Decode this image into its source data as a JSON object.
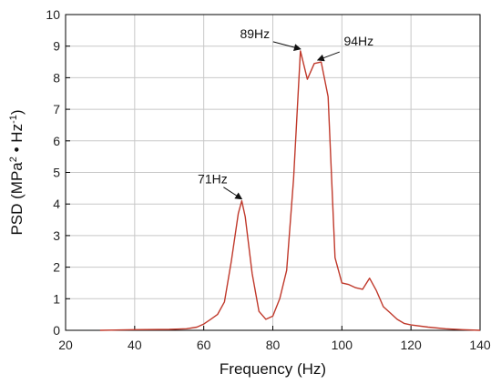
{
  "chart_data": {
    "type": "line",
    "xlabel": "Frequency (Hz)",
    "ylabel": {
      "base": "PSD (MPa",
      "sup1": "2",
      "mid": " • Hz",
      "sup2": "-1",
      "end": ")"
    },
    "xlim": [
      20,
      140
    ],
    "ylim": [
      0,
      10
    ],
    "x_ticks": [
      20,
      40,
      60,
      80,
      100,
      120,
      140
    ],
    "y_ticks": [
      0,
      1,
      2,
      3,
      4,
      5,
      6,
      7,
      8,
      9,
      10
    ],
    "grid": true,
    "series": [
      {
        "color": "#c0392b",
        "points": [
          [
            30,
            0.0
          ],
          [
            40,
            0.02
          ],
          [
            50,
            0.03
          ],
          [
            55,
            0.05
          ],
          [
            58,
            0.1
          ],
          [
            60,
            0.2
          ],
          [
            62,
            0.35
          ],
          [
            64,
            0.5
          ],
          [
            66,
            0.9
          ],
          [
            68,
            2.2
          ],
          [
            70,
            3.7
          ],
          [
            71,
            4.1
          ],
          [
            72,
            3.6
          ],
          [
            74,
            1.8
          ],
          [
            76,
            0.6
          ],
          [
            78,
            0.35
          ],
          [
            80,
            0.45
          ],
          [
            82,
            1.0
          ],
          [
            84,
            1.9
          ],
          [
            86,
            4.8
          ],
          [
            88,
            8.85
          ],
          [
            90,
            7.95
          ],
          [
            92,
            8.45
          ],
          [
            94,
            8.5
          ],
          [
            96,
            7.4
          ],
          [
            98,
            2.3
          ],
          [
            100,
            1.5
          ],
          [
            102,
            1.45
          ],
          [
            104,
            1.35
          ],
          [
            106,
            1.3
          ],
          [
            108,
            1.65
          ],
          [
            110,
            1.25
          ],
          [
            112,
            0.75
          ],
          [
            114,
            0.55
          ],
          [
            116,
            0.35
          ],
          [
            118,
            0.22
          ],
          [
            120,
            0.17
          ],
          [
            125,
            0.1
          ],
          [
            130,
            0.05
          ],
          [
            135,
            0.02
          ],
          [
            140,
            0.0
          ]
        ]
      }
    ],
    "annotations": [
      {
        "text": "71Hz",
        "x": 71,
        "y": 4.1
      },
      {
        "text": "89Hz",
        "x": 88,
        "y": 8.85
      },
      {
        "text": "94Hz",
        "x": 93,
        "y": 8.5
      }
    ]
  }
}
